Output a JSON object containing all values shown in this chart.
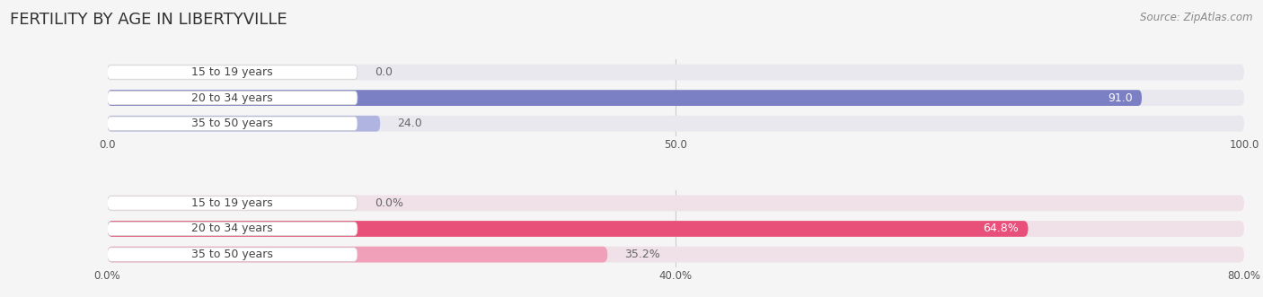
{
  "title": "FERTILITY BY AGE IN LIBERTYVILLE",
  "source": "Source: ZipAtlas.com",
  "top_chart": {
    "categories": [
      "15 to 19 years",
      "20 to 34 years",
      "35 to 50 years"
    ],
    "values": [
      0.0,
      91.0,
      24.0
    ],
    "xlim": [
      0,
      100
    ],
    "xticks": [
      0.0,
      50.0,
      100.0
    ],
    "xtick_labels": [
      "0.0",
      "50.0",
      "100.0"
    ],
    "bar_color_strong": "#7b7fc4",
    "bar_color_light": "#b0b4e0",
    "bar_bg_color": "#e8e8ee",
    "label_color": "#ffffff",
    "value_color_inside": "#ffffff",
    "value_color_outside": "#888888"
  },
  "bottom_chart": {
    "categories": [
      "15 to 19 years",
      "20 to 34 years",
      "35 to 50 years"
    ],
    "values": [
      0.0,
      64.8,
      35.2
    ],
    "xlim": [
      0,
      80
    ],
    "xticks": [
      0.0,
      40.0,
      80.0
    ],
    "xtick_labels": [
      "0.0%",
      "40.0%",
      "80.0%"
    ],
    "bar_color_strong": "#e8507a",
    "bar_color_light": "#f0a0b8",
    "bar_bg_color": "#f0e0e8",
    "label_color": "#ffffff",
    "value_color_inside": "#ffffff",
    "value_color_outside": "#888888"
  },
  "bg_color": "#f5f5f5",
  "title_fontsize": 13,
  "source_fontsize": 8.5,
  "label_fontsize": 9,
  "value_fontsize": 9,
  "tick_fontsize": 8.5
}
